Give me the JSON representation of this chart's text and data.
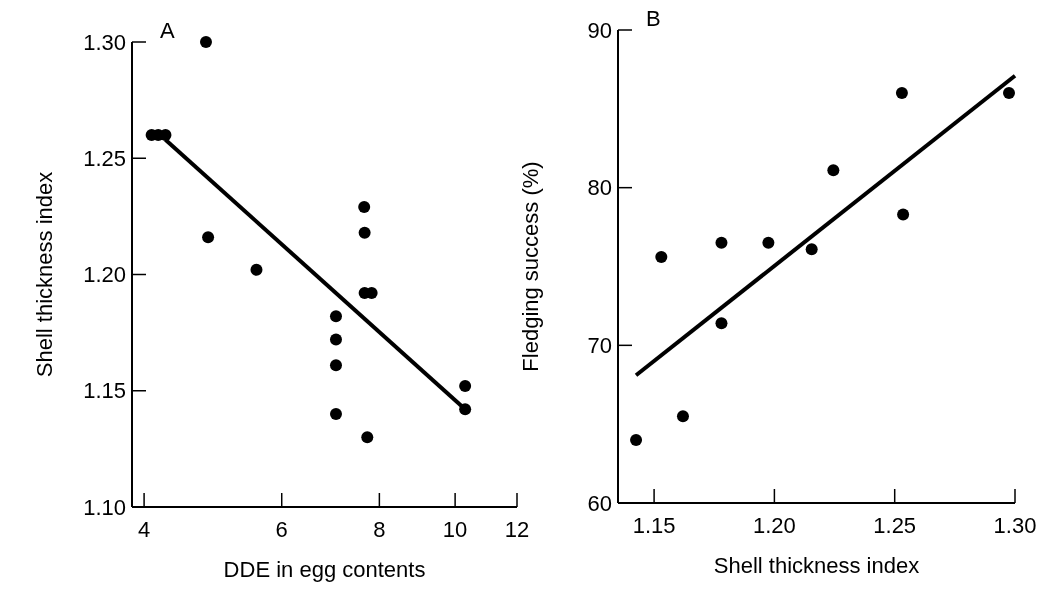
{
  "chart_data": [
    {
      "type": "scatter",
      "title": "A",
      "xlabel": "DDE in egg contents",
      "ylabel": "Shell thickness index",
      "log": "x",
      "xlim": [
        3.86,
        12
      ],
      "xticks": [
        4,
        6,
        8,
        10,
        12
      ],
      "ylim": [
        1.1,
        1.3
      ],
      "yticks": [
        {
          "value": 1.1,
          "label": "1.10"
        },
        {
          "value": 1.15,
          "label": "1.15"
        },
        {
          "value": 1.2,
          "label": "1.20"
        },
        {
          "value": 1.25,
          "label": "1.25"
        },
        {
          "value": 1.3,
          "label": "1.30"
        }
      ],
      "grid": false,
      "marker": "circle",
      "series": [
        {
          "color": "#000000",
          "x": [
            4.8,
            4.09,
            4.17,
            4.26,
            4.83,
            5.57,
            7.65,
            7.66,
            7.66,
            7.82,
            7.04,
            7.04,
            7.04,
            7.04,
            7.72,
            10.3,
            10.3
          ],
          "values": [
            1.3,
            1.26,
            1.26,
            1.26,
            1.216,
            1.202,
            1.229,
            1.218,
            1.192,
            1.192,
            1.182,
            1.172,
            1.161,
            1.14,
            1.13,
            1.152,
            1.142
          ]
        },
        {
          "type": "line",
          "color": "#000000",
          "marker": "none",
          "x": [
            4.26,
            10.3
          ],
          "values": [
            1.258,
            1.142
          ]
        }
      ]
    },
    {
      "type": "scatter",
      "title": "B",
      "xlabel": "Shell thickness index",
      "ylabel": "Fledging success (%)",
      "xlim": [
        1.135,
        1.3
      ],
      "xticks": [
        {
          "value": 1.15,
          "label": "1.15"
        },
        {
          "value": 1.2,
          "label": "1.20"
        },
        {
          "value": 1.25,
          "label": "1.25"
        },
        {
          "value": 1.3,
          "label": "1.30"
        }
      ],
      "ylim": [
        60,
        90
      ],
      "yticks": [
        60,
        70,
        80,
        90
      ],
      "grid": false,
      "marker": "circle",
      "series": [
        {
          "color": "#000000",
          "x": [
            1.1425,
            1.153,
            1.162,
            1.178,
            1.178,
            1.1975,
            1.2155,
            1.2245,
            1.253,
            1.2535,
            1.2975
          ],
          "values": [
            64,
            75.6,
            65.5,
            76.5,
            71.4,
            76.5,
            76.1,
            81.1,
            86,
            78.3,
            86
          ]
        },
        {
          "type": "line",
          "color": "#000000",
          "marker": "none",
          "x": [
            1.1425,
            1.3
          ],
          "values": [
            68.1,
            87.1
          ]
        }
      ]
    }
  ]
}
